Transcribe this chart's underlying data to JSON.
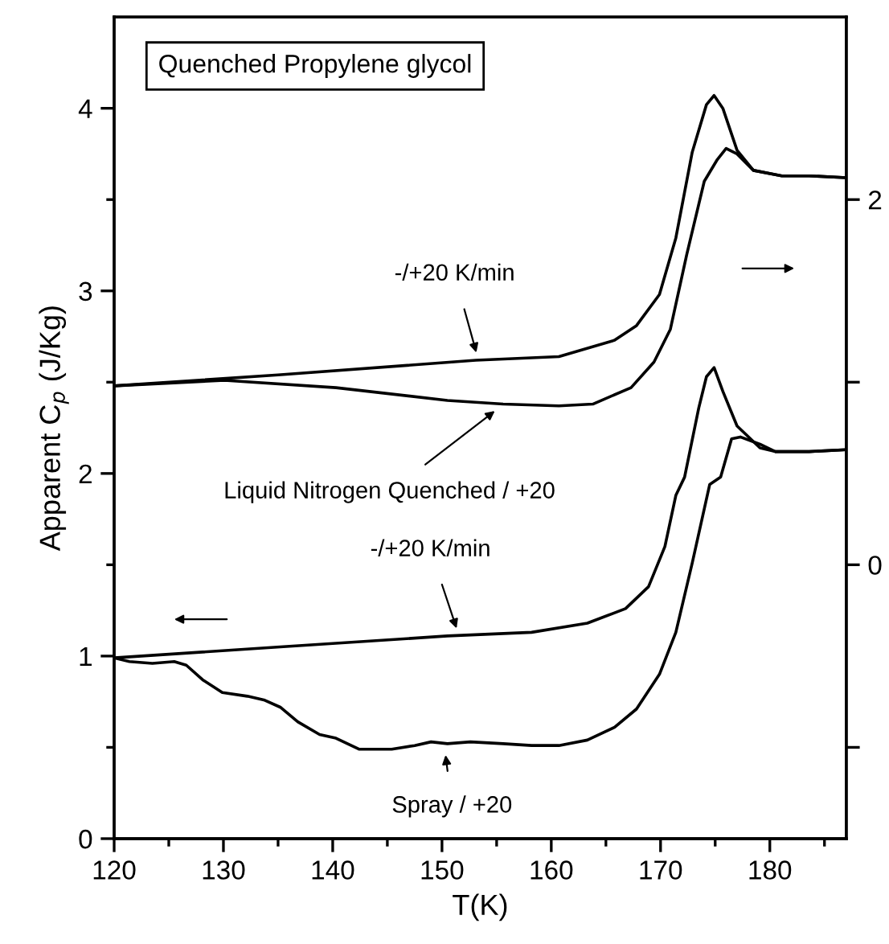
{
  "chart_data": {
    "type": "line",
    "title": "Quenched Propylene glycol",
    "xlabel": "T(K)",
    "ylabel": "Apparent C$_{p}$ (J/Kg)",
    "xlim": [
      120,
      187
    ],
    "xticks": [
      120,
      {
        "value": 125,
        "label": null
      },
      130,
      {
        "value": 135,
        "label": null
      },
      140,
      {
        "value": 145,
        "label": null
      },
      150,
      {
        "value": 155,
        "label": null
      },
      160,
      {
        "value": 165,
        "label": null
      },
      170,
      {
        "value": 175,
        "label": null
      },
      180,
      {
        "value": 185,
        "label": null
      }
    ],
    "ylim": [
      0,
      4.5
    ],
    "yticks": [
      0,
      {
        "value": 0.5,
        "label": null
      },
      1,
      {
        "value": 1.5,
        "label": null
      },
      2,
      {
        "value": 2.5,
        "label": null
      },
      3,
      {
        "value": 3.5,
        "label": null
      },
      4
    ],
    "y2lim": [
      -1.5,
      3.0
    ],
    "y2ticks": [
      {
        "value": -1,
        "label": null
      },
      0,
      {
        "value": 1,
        "label": null
      },
      2
    ],
    "grid": false,
    "legend": false,
    "marker": "none",
    "line_style": "solid",
    "series": [
      {
        "color": "#000000",
        "axis": "y2",
        "x": [
          120,
          135,
          153.1,
          160.7,
          165.8,
          167.8,
          169.9,
          171.4,
          172.9,
          174.2,
          174.9,
          175.7,
          177.0,
          178.5,
          181.1,
          183.6,
          187
        ],
        "values": [
          0.98,
          1.04,
          1.12,
          1.14,
          1.23,
          1.31,
          1.48,
          1.79,
          2.26,
          2.52,
          2.57,
          2.5,
          2.27,
          2.16,
          2.13,
          2.13,
          2.12
        ]
      },
      {
        "color": "#000000",
        "axis": "y2",
        "x": [
          120,
          130.1,
          140.3,
          150.5,
          155.6,
          160.7,
          163.8,
          167.3,
          169.4,
          170.9,
          172.4,
          174.0,
          175.2,
          176.0,
          177.0,
          178.5,
          181.1,
          183.6,
          187
        ],
        "values": [
          0.98,
          1.01,
          0.97,
          0.9,
          0.88,
          0.87,
          0.88,
          0.97,
          1.11,
          1.29,
          1.7,
          2.1,
          2.22,
          2.28,
          2.25,
          2.16,
          2.13,
          2.13,
          2.12
        ]
      },
      {
        "color": "#000000",
        "x": [
          120,
          135.2,
          150.5,
          158.2,
          163.3,
          166.8,
          168.9,
          170.4,
          171.4,
          172.2,
          173.5,
          174.2,
          174.9,
          175.7,
          177.0,
          179.1,
          180.5,
          183.6,
          187
        ],
        "values": [
          0.99,
          1.05,
          1.11,
          1.13,
          1.18,
          1.26,
          1.38,
          1.6,
          1.88,
          1.98,
          2.36,
          2.53,
          2.58,
          2.45,
          2.26,
          2.14,
          2.12,
          2.12,
          2.13
        ]
      },
      {
        "color": "#000000",
        "x": [
          120,
          121.4,
          123.5,
          125.5,
          126.6,
          128.1,
          129.9,
          132.2,
          133.7,
          135.2,
          136.8,
          138.8,
          140.3,
          142.4,
          145.4,
          147.5,
          149.0,
          150.5,
          152.6,
          155.6,
          158.2,
          160.7,
          163.3,
          165.8,
          167.8,
          169.9,
          171.4,
          172.9,
          174.5,
          175.5,
          176.5,
          177.3,
          179.1,
          180.5,
          183.6,
          187
        ],
        "values": [
          0.99,
          0.97,
          0.96,
          0.97,
          0.95,
          0.87,
          0.8,
          0.78,
          0.76,
          0.72,
          0.64,
          0.57,
          0.55,
          0.49,
          0.49,
          0.51,
          0.53,
          0.52,
          0.53,
          0.52,
          0.51,
          0.51,
          0.54,
          0.61,
          0.71,
          0.9,
          1.13,
          1.51,
          1.94,
          1.98,
          2.19,
          2.2,
          2.16,
          2.12,
          2.12,
          2.13
        ]
      }
    ],
    "annotations": [
      {
        "text": "-/+20 K/min",
        "x": 153.2,
        "y": 2.65
      },
      {
        "text": "Liquid Nitrogen Quenched / +20",
        "x": 155,
        "y": 2.35
      },
      {
        "text": "-/+20 K/min",
        "x": 151.4,
        "y": 1.14
      },
      {
        "text": "Spray / +20",
        "x": 150.3,
        "y": 0.47
      }
    ]
  }
}
